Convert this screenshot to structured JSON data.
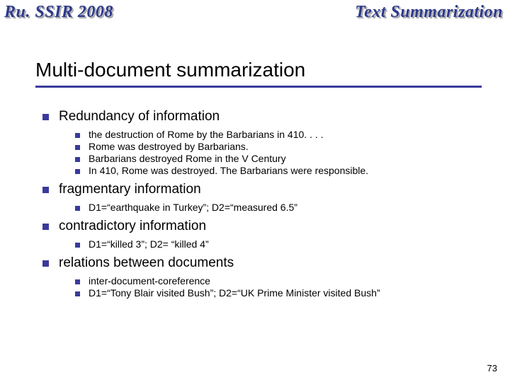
{
  "header": {
    "left": "Ru. SSIR 2008",
    "right": "Text Summarization"
  },
  "title": "Multi-document summarization",
  "items": [
    {
      "label": "Redundancy of information",
      "sub": [
        "the destruction of Rome by the Barbarians in 410. . . .",
        "Rome was destroyed by Barbarians.",
        "Barbarians destroyed Rome in the V Century",
        "In 410, Rome was destroyed.  The Barbarians were responsible."
      ]
    },
    {
      "label": "fragmentary information",
      "sub": [
        "D1=“earthquake in Turkey”; D2=“measured 6.5”"
      ]
    },
    {
      "label": "contradictory information",
      "sub": [
        "D1=“killed 3”; D2= “killed 4”"
      ]
    },
    {
      "label": "relations between documents",
      "sub": [
        "inter-document-coreference",
        "D1=“Tony Blair visited Bush”; D2=“UK Prime Minister visited Bush”"
      ]
    }
  ],
  "pageNumber": "73",
  "colors": {
    "accent": "#3a3a9c",
    "headerText": "#2e3a8c"
  },
  "fonts": {
    "title_size_pt": 28,
    "l1_size_pt": 19,
    "l2_size_pt": 14
  }
}
